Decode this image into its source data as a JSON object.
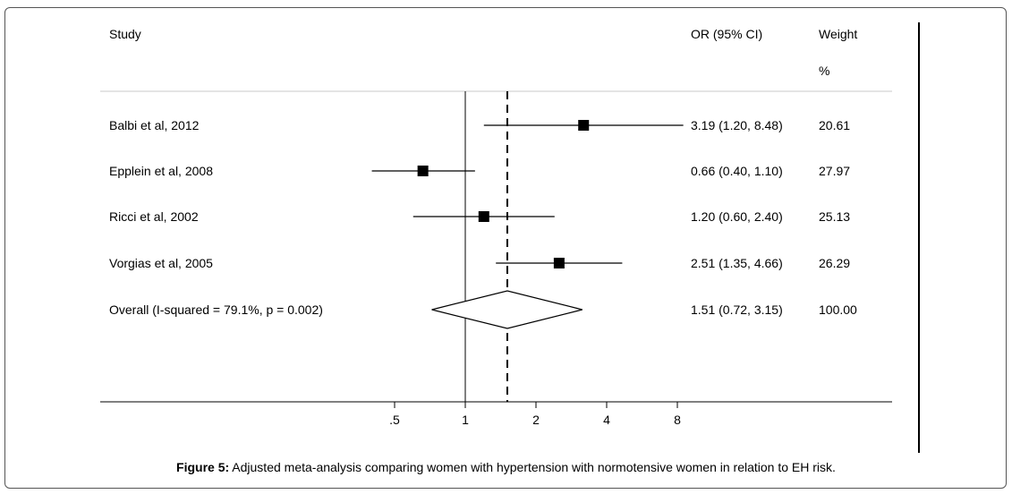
{
  "caption": {
    "label": "Figure 5:",
    "text": " Adjusted meta-analysis comparing women with hypertension with normotensive women in relation to EH risk."
  },
  "chart_data": {
    "type": "forest",
    "headers": {
      "study": "Study",
      "or": "OR (95% CI)",
      "weight": "Weight",
      "weight_unit": "%"
    },
    "scale": "log",
    "null_value": 1,
    "overall_value": 1.51,
    "x_ticks": [
      {
        "value": 0.5,
        "label": ".5"
      },
      {
        "value": 1,
        "label": "1"
      },
      {
        "value": 2,
        "label": "2"
      },
      {
        "value": 4,
        "label": "4"
      },
      {
        "value": 8,
        "label": "8"
      }
    ],
    "studies": [
      {
        "name": "Balbi et al, 2012",
        "or": 3.19,
        "lo": 1.2,
        "hi": 8.48,
        "or_text": "3.19 (1.20, 8.48)",
        "weight": "20.61"
      },
      {
        "name": "Epplein et al, 2008",
        "or": 0.66,
        "lo": 0.4,
        "hi": 1.1,
        "or_text": "0.66 (0.40, 1.10)",
        "weight": "27.97"
      },
      {
        "name": "Ricci et al, 2002",
        "or": 1.2,
        "lo": 0.6,
        "hi": 2.4,
        "or_text": "1.20 (0.60, 2.40)",
        "weight": "25.13"
      },
      {
        "name": "Vorgias et al, 2005",
        "or": 2.51,
        "lo": 1.35,
        "hi": 4.66,
        "or_text": "2.51 (1.35, 4.66)",
        "weight": "26.29"
      }
    ],
    "overall": {
      "name": "Overall (I-squared = 79.1%, p = 0.002)",
      "or": 1.51,
      "lo": 0.72,
      "hi": 3.15,
      "or_text": "1.51 (0.72, 3.15)",
      "weight": "100.00"
    }
  }
}
